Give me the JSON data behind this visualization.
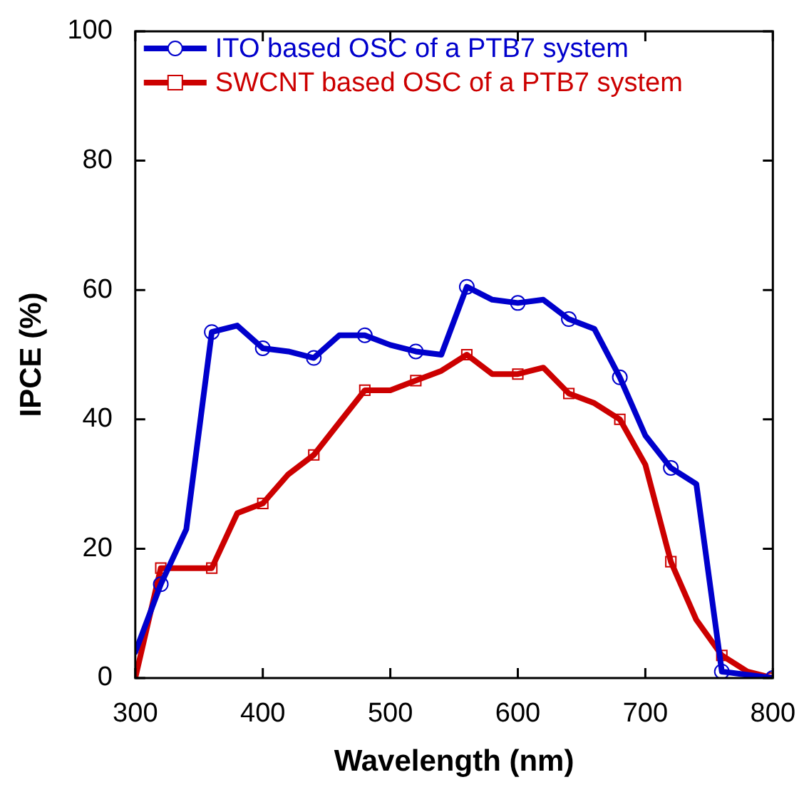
{
  "chart_data": {
    "type": "line",
    "xlabel": "Wavelength (nm)",
    "ylabel": "IPCE (%)",
    "x": [
      300,
      320,
      340,
      360,
      380,
      400,
      420,
      440,
      460,
      480,
      500,
      520,
      540,
      560,
      580,
      600,
      620,
      640,
      660,
      680,
      700,
      720,
      740,
      760,
      780,
      800
    ],
    "xlim": [
      300,
      800
    ],
    "xticks": [
      300,
      400,
      500,
      600,
      700,
      800
    ],
    "ylim": [
      0,
      100
    ],
    "yticks": [
      0,
      20,
      40,
      60,
      80,
      100
    ],
    "grid": false,
    "legend": "top left",
    "line_style": "solid",
    "series": [
      {
        "name": "ITO based OSC of a PTB7 system",
        "color": "#0000cc",
        "marker": "circle",
        "values": [
          4,
          14.5,
          23,
          53.5,
          54.5,
          51,
          50.5,
          49.5,
          53,
          53,
          51.5,
          50.5,
          50,
          60.5,
          58.5,
          58,
          58.5,
          55.5,
          54,
          46.5,
          37.5,
          32.5,
          30,
          1,
          0.5,
          0
        ]
      },
      {
        "name": "SWCNT based OSC of a PTB7 system",
        "color": "#cc0000",
        "marker": "square",
        "values": [
          0,
          17,
          17,
          17,
          25.5,
          27,
          31.5,
          34.5,
          39.5,
          44.5,
          44.5,
          46,
          47.5,
          50,
          47,
          47,
          48,
          44,
          42.5,
          40,
          33,
          18,
          9,
          3.5,
          1,
          0
        ]
      }
    ]
  }
}
